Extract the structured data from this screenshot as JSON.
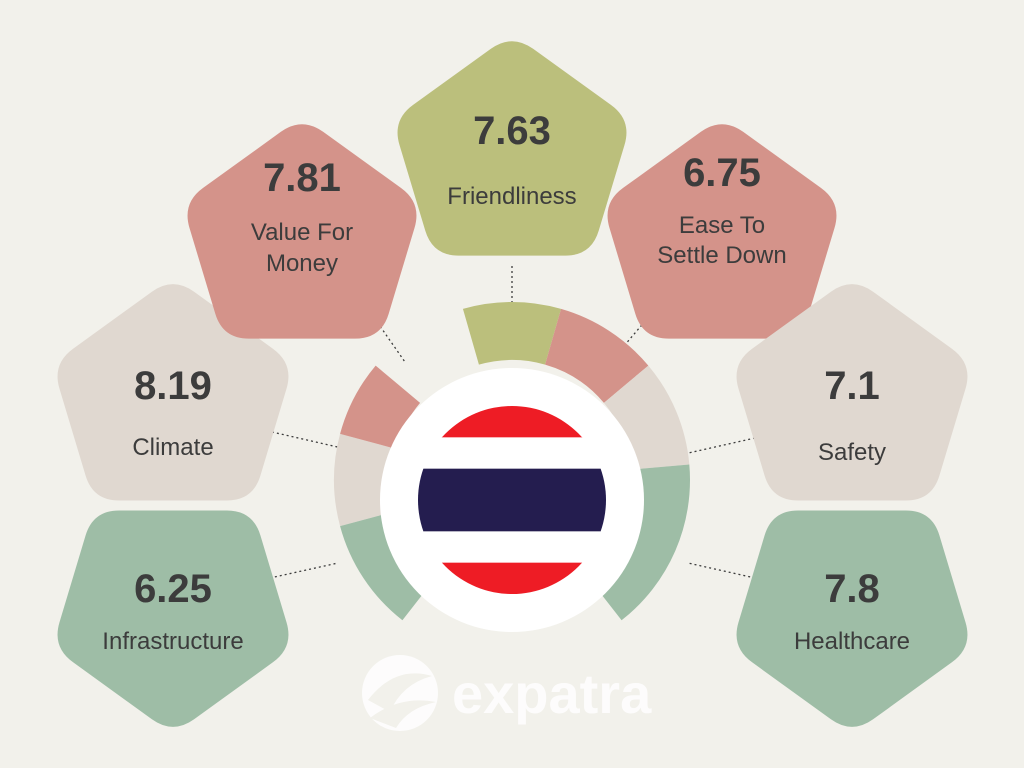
{
  "country_flag": "thailand-flag",
  "colors": {
    "background": "#f2f1eb",
    "red": "#d4938a",
    "olive": "#bbbf7c",
    "beige": "#e0d8d0",
    "green": "#9ebda6",
    "text": "#3c3c3c",
    "flag_red": "#ee1c25",
    "flag_blue": "#241d4f",
    "flag_white": "#ffffff"
  },
  "ratings": [
    {
      "id": "climate",
      "score": "8.19",
      "label_lines": [
        "Climate"
      ],
      "color": "#e0d8d0"
    },
    {
      "id": "value-for-money",
      "score": "7.81",
      "label_lines": [
        "Value For",
        "Money"
      ],
      "color": "#d4938a"
    },
    {
      "id": "friendliness",
      "score": "7.63",
      "label_lines": [
        "Friendliness"
      ],
      "color": "#bbbf7c"
    },
    {
      "id": "ease-to-settle-down",
      "score": "6.75",
      "label_lines": [
        "Ease To",
        "Settle Down"
      ],
      "color": "#d4938a"
    },
    {
      "id": "safety",
      "score": "7.1",
      "label_lines": [
        "Safety"
      ],
      "color": "#e0d8d0"
    },
    {
      "id": "infrastructure",
      "score": "6.25",
      "label_lines": [
        "Infrastructure"
      ],
      "color": "#9ebda6"
    },
    {
      "id": "healthcare",
      "score": "7.8",
      "label_lines": [
        "Healthcare"
      ],
      "color": "#9ebda6"
    }
  ],
  "brand": {
    "name": "expatra",
    "icon": "expatra-logo-icon"
  }
}
